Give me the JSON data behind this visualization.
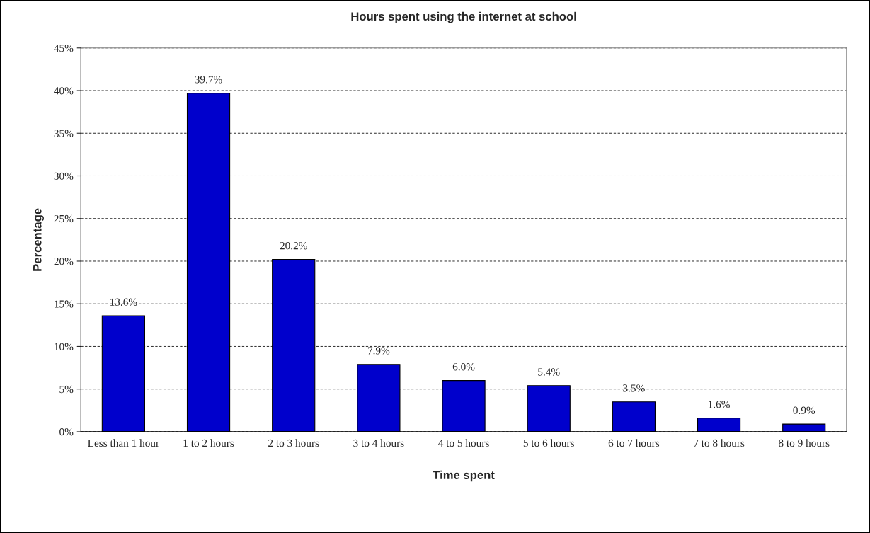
{
  "chart_data": {
    "type": "bar",
    "title": "Hours spent using the internet at school",
    "xlabel": "Time spent",
    "ylabel": "Percentage",
    "categories": [
      "Less than 1 hour",
      "1 to 2 hours",
      "2 to 3 hours",
      "3 to 4 hours",
      "4 to 5 hours",
      "5 to 6 hours",
      "6 to 7 hours",
      "7 to 8 hours",
      "8 to 9 hours"
    ],
    "values": [
      13.6,
      39.7,
      20.2,
      7.9,
      6.0,
      5.4,
      3.5,
      1.6,
      0.9
    ],
    "value_labels": [
      "13.6%",
      "39.7%",
      "20.2%",
      "7.9%",
      "6.0%",
      "5.4%",
      "3.5%",
      "1.6%",
      "0.9%"
    ],
    "color": "#0000cc",
    "ylim": [
      0,
      45
    ],
    "yticks": [
      {
        "value": 0,
        "label": "0%"
      },
      {
        "value": 5,
        "label": "5%"
      },
      {
        "value": 10,
        "label": "10%"
      },
      {
        "value": 15,
        "label": "15%"
      },
      {
        "value": 20,
        "label": "20%"
      },
      {
        "value": 25,
        "label": "25%"
      },
      {
        "value": 30,
        "label": "30%"
      },
      {
        "value": 35,
        "label": "35%"
      },
      {
        "value": 40,
        "label": "40%"
      },
      {
        "value": 45,
        "label": "45%"
      }
    ],
    "grid": "y",
    "line_style": "dashed",
    "legend": false
  }
}
